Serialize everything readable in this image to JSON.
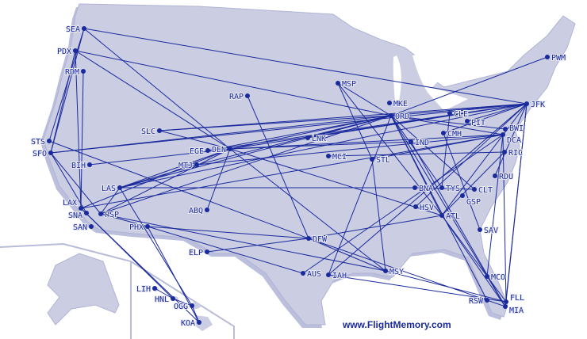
{
  "branding": {
    "site": "www.FlightMemory.com"
  },
  "colors": {
    "land": "#cbcde2",
    "land_shadow": "#8d93c6",
    "route": "#1a2a9c",
    "airport": "#1a2a9c",
    "water": "#ffffff"
  },
  "airports": [
    "SEA",
    "PDX",
    "RDM",
    "STS",
    "SFO",
    "BIH",
    "LAX",
    "SNA",
    "PSP",
    "SAN",
    "LAS",
    "PHX",
    "SLC",
    "EGE",
    "DEN",
    "MTJ",
    "ABQ",
    "RAP",
    "MSP",
    "MKE",
    "ORD",
    "CLE",
    "PIT",
    "CMH",
    "IND",
    "LNK",
    "MCI",
    "STL",
    "BWI",
    "DCA",
    "RIC",
    "RDU",
    "JFK",
    "PWM",
    "BNA",
    "TYS",
    "CLT",
    "GSP",
    "HSV",
    "ATL",
    "SAV",
    "MCO",
    "RSW",
    "FLL",
    "MIA",
    "DFW",
    "ELP",
    "AUS",
    "IAH",
    "MSY",
    "LIH",
    "HNL",
    "OGG",
    "KOA"
  ],
  "routes": [
    [
      "SEA",
      "JFK"
    ],
    [
      "SEA",
      "SFO"
    ],
    [
      "SEA",
      "DEN"
    ],
    [
      "SEA",
      "STS"
    ],
    [
      "PDX",
      "ORD"
    ],
    [
      "PDX",
      "LAX"
    ],
    [
      "PDX",
      "DEN"
    ],
    [
      "PDX",
      "SFO"
    ],
    [
      "RDM",
      "LAX"
    ],
    [
      "SFO",
      "ORD"
    ],
    [
      "SFO",
      "JFK"
    ],
    [
      "SFO",
      "PSP"
    ],
    [
      "SFO",
      "SNA"
    ],
    [
      "STS",
      "DFW"
    ],
    [
      "BIH",
      "DEN"
    ],
    [
      "LAS",
      "JFK"
    ],
    [
      "LAS",
      "ORD"
    ],
    [
      "LAS",
      "BNA"
    ],
    [
      "LAS",
      "MTJ"
    ],
    [
      "LAS",
      "DEN"
    ],
    [
      "LAS",
      "OGG"
    ],
    [
      "LAS",
      "PSP"
    ],
    [
      "LAX",
      "DEN"
    ],
    [
      "LAX",
      "KOA"
    ],
    [
      "LAX",
      "HNL"
    ],
    [
      "LAX",
      "DCA"
    ],
    [
      "PSP",
      "DEN"
    ],
    [
      "PSP",
      "PHX"
    ],
    [
      "PSP",
      "MSY"
    ],
    [
      "PSP",
      "ORD"
    ],
    [
      "PHX",
      "DFW"
    ],
    [
      "PHX",
      "AUS"
    ],
    [
      "PHX",
      "KOA"
    ],
    [
      "SLC",
      "ORD"
    ],
    [
      "SLC",
      "JFK"
    ],
    [
      "SLC",
      "DEN"
    ],
    [
      "EGE",
      "ORD"
    ],
    [
      "EGE",
      "JFK"
    ],
    [
      "DEN",
      "ORD"
    ],
    [
      "DEN",
      "JFK"
    ],
    [
      "DEN",
      "ABQ"
    ],
    [
      "DEN",
      "MSY"
    ],
    [
      "DEN",
      "ATL"
    ],
    [
      "DEN",
      "DCA"
    ],
    [
      "DEN",
      "IND"
    ],
    [
      "MTJ",
      "ORD"
    ],
    [
      "MTJ",
      "DCA"
    ],
    [
      "RAP",
      "DFW"
    ],
    [
      "MSP",
      "ORD"
    ],
    [
      "MSP",
      "STL"
    ],
    [
      "MSP",
      "ATL"
    ],
    [
      "ORD",
      "JFK"
    ],
    [
      "ORD",
      "PWM"
    ],
    [
      "ORD",
      "MIA"
    ],
    [
      "ORD",
      "ATL"
    ],
    [
      "ORD",
      "TYS"
    ],
    [
      "ORD",
      "CLT"
    ],
    [
      "ORD",
      "IAH"
    ],
    [
      "ORD",
      "DCA"
    ],
    [
      "ORD",
      "RSW"
    ],
    [
      "ORD",
      "LNK"
    ],
    [
      "ORD",
      "BWI"
    ],
    [
      "JFK",
      "FLL"
    ],
    [
      "JFK",
      "MIA"
    ],
    [
      "JFK",
      "ATL"
    ],
    [
      "JFK",
      "HSV"
    ],
    [
      "JFK",
      "IAH"
    ],
    [
      "JFK",
      "LNK"
    ],
    [
      "JFK",
      "PIT"
    ],
    [
      "JFK",
      "RDU"
    ],
    [
      "JFK",
      "CMH"
    ],
    [
      "CLE",
      "TYS"
    ],
    [
      "CMH",
      "SAV"
    ],
    [
      "DCA",
      "AUS"
    ],
    [
      "DCA",
      "MCO"
    ],
    [
      "DCA",
      "FLL"
    ],
    [
      "RIC",
      "MCI"
    ],
    [
      "RIC",
      "ATL"
    ],
    [
      "STL",
      "DCA"
    ],
    [
      "DFW",
      "ATL"
    ],
    [
      "DFW",
      "ELP"
    ],
    [
      "DFW",
      "MIA"
    ],
    [
      "DFW",
      "MSY"
    ],
    [
      "IAH",
      "FLL"
    ],
    [
      "MSY",
      "FLL"
    ],
    [
      "MSY",
      "STL"
    ],
    [
      "ATL",
      "FLL"
    ],
    [
      "ATL",
      "MIA"
    ],
    [
      "BNA",
      "CLT"
    ],
    [
      "IND",
      "MIA"
    ],
    [
      "HNL",
      "LIH"
    ],
    [
      "HNL",
      "OGG"
    ],
    [
      "OGG",
      "KOA"
    ]
  ]
}
